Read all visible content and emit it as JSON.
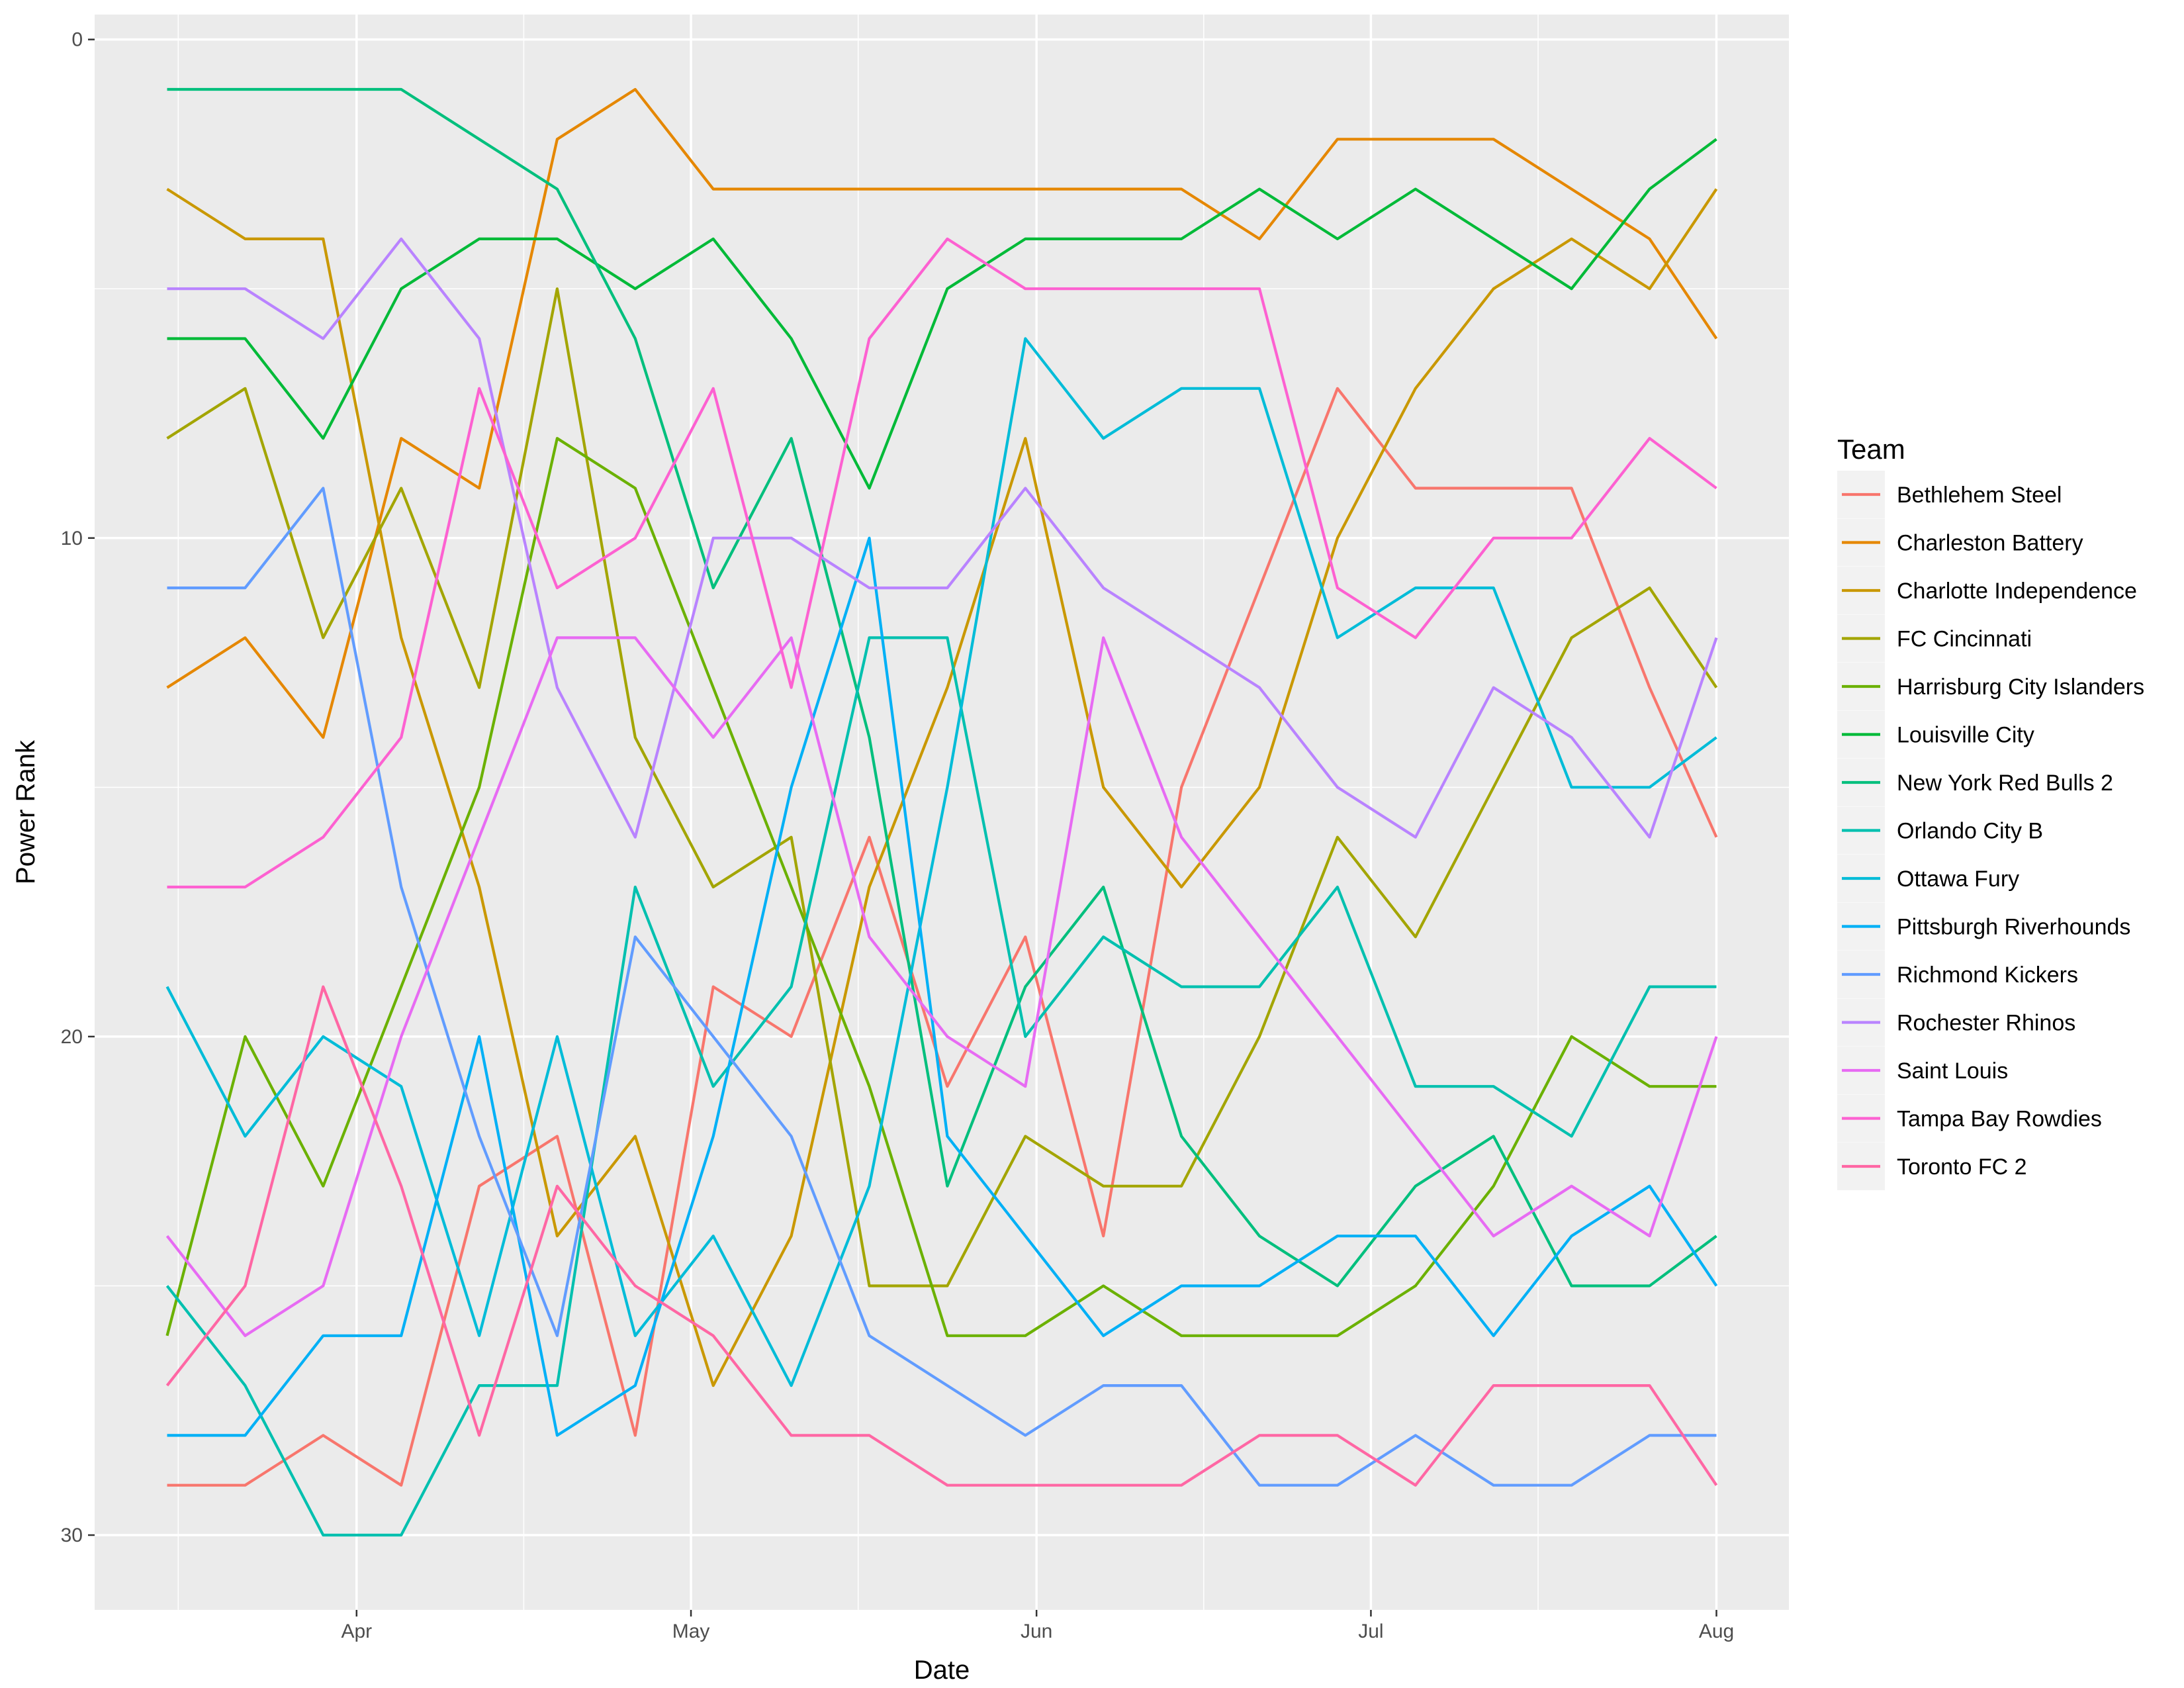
{
  "chart_data": {
    "type": "line",
    "xlabel": "Date",
    "ylabel": "Power Rank",
    "x_tick_labels": [
      "Apr",
      "May",
      "Jun",
      "Jul",
      "Aug"
    ],
    "y_tick_labels": [
      "0",
      "10",
      "20",
      "30"
    ],
    "ylim": [
      31.5,
      -0.5
    ],
    "y_reversed": true,
    "grid": true,
    "legend_title": "Team",
    "legend_position": "right",
    "dates": [
      "2018-03-15",
      "2018-03-22",
      "2018-03-29",
      "2018-04-05",
      "2018-04-12",
      "2018-04-19",
      "2018-04-26",
      "2018-05-03",
      "2018-05-10",
      "2018-05-17",
      "2018-05-24",
      "2018-05-31",
      "2018-06-07",
      "2018-06-14",
      "2018-06-21",
      "2018-06-28",
      "2018-07-05",
      "2018-07-12",
      "2018-07-19",
      "2018-07-26",
      "2018-08-01"
    ],
    "series": [
      {
        "name": "Bethlehem Steel",
        "color": "#F8766D",
        "values": [
          29,
          29,
          28,
          29,
          23,
          22,
          28,
          19,
          20,
          16,
          21,
          18,
          24,
          15,
          11,
          7,
          9,
          9,
          9,
          13,
          16
        ]
      },
      {
        "name": "Charleston Battery",
        "color": "#E58700",
        "values": [
          13,
          12,
          14,
          8,
          9,
          2,
          1,
          3,
          3,
          3,
          3,
          3,
          3,
          3,
          4,
          2,
          2,
          2,
          3,
          4,
          6
        ]
      },
      {
        "name": "Charlotte Independence",
        "color": "#C99800",
        "values": [
          3,
          4,
          4,
          12,
          17,
          24,
          22,
          27,
          24,
          17,
          13,
          8,
          15,
          17,
          15,
          10,
          7,
          5,
          4,
          5,
          3
        ]
      },
      {
        "name": "FC Cincinnati",
        "color": "#A3A500",
        "values": [
          8,
          7,
          12,
          9,
          13,
          5,
          14,
          17,
          16,
          25,
          25,
          22,
          23,
          23,
          20,
          16,
          18,
          15,
          12,
          11,
          13
        ]
      },
      {
        "name": "Harrisburg City Islanders",
        "color": "#6BB100",
        "values": [
          26,
          20,
          23,
          19,
          15,
          8,
          9,
          13,
          17,
          21,
          26,
          26,
          25,
          26,
          26,
          26,
          25,
          23,
          20,
          21,
          21
        ]
      },
      {
        "name": "Louisville City",
        "color": "#00BA38",
        "values": [
          6,
          6,
          8,
          5,
          4,
          4,
          5,
          4,
          6,
          9,
          5,
          4,
          4,
          4,
          3,
          4,
          3,
          4,
          5,
          3,
          2
        ]
      },
      {
        "name": "New York Red Bulls 2",
        "color": "#00BF7D",
        "values": [
          1,
          1,
          1,
          1,
          2,
          3,
          6,
          11,
          8,
          14,
          23,
          19,
          17,
          22,
          24,
          25,
          23,
          22,
          25,
          25,
          24
        ]
      },
      {
        "name": "Orlando City B",
        "color": "#00C0AF",
        "values": [
          25,
          27,
          30,
          30,
          27,
          27,
          17,
          21,
          19,
          12,
          12,
          20,
          18,
          19,
          19,
          17,
          21,
          21,
          22,
          19,
          19
        ]
      },
      {
        "name": "Ottawa Fury",
        "color": "#00BCD8",
        "values": [
          19,
          22,
          20,
          21,
          26,
          20,
          26,
          24,
          27,
          23,
          15,
          6,
          8,
          7,
          7,
          12,
          11,
          11,
          15,
          15,
          14
        ]
      },
      {
        "name": "Pittsburgh Riverhounds",
        "color": "#00B0F6",
        "values": [
          28,
          28,
          26,
          26,
          20,
          28,
          27,
          22,
          15,
          10,
          22,
          24,
          26,
          25,
          25,
          24,
          24,
          26,
          24,
          23,
          25
        ]
      },
      {
        "name": "Richmond Kickers",
        "color": "#619CFF",
        "values": [
          11,
          11,
          9,
          17,
          22,
          26,
          18,
          20,
          22,
          26,
          27,
          28,
          27,
          27,
          29,
          29,
          28,
          29,
          29,
          28,
          28
        ]
      },
      {
        "name": "Rochester Rhinos",
        "color": "#B983FF",
        "values": [
          5,
          5,
          6,
          4,
          6,
          13,
          16,
          10,
          10,
          11,
          11,
          9,
          11,
          12,
          13,
          15,
          16,
          13,
          14,
          16,
          12
        ]
      },
      {
        "name": "Saint Louis",
        "color": "#E76BF3",
        "values": [
          24,
          26,
          25,
          20,
          16,
          12,
          12,
          14,
          12,
          18,
          20,
          21,
          12,
          16,
          18,
          20,
          22,
          24,
          23,
          24,
          20
        ]
      },
      {
        "name": "Tampa Bay Rowdies",
        "color": "#FD61D1",
        "values": [
          17,
          17,
          16,
          14,
          7,
          11,
          10,
          7,
          13,
          6,
          4,
          5,
          5,
          5,
          5,
          11,
          12,
          10,
          10,
          8,
          9
        ]
      },
      {
        "name": "Toronto FC 2",
        "color": "#FF67A4",
        "values": [
          27,
          25,
          19,
          23,
          28,
          23,
          25,
          26,
          28,
          28,
          29,
          29,
          29,
          29,
          28,
          28,
          29,
          27,
          27,
          27,
          29
        ]
      }
    ]
  }
}
